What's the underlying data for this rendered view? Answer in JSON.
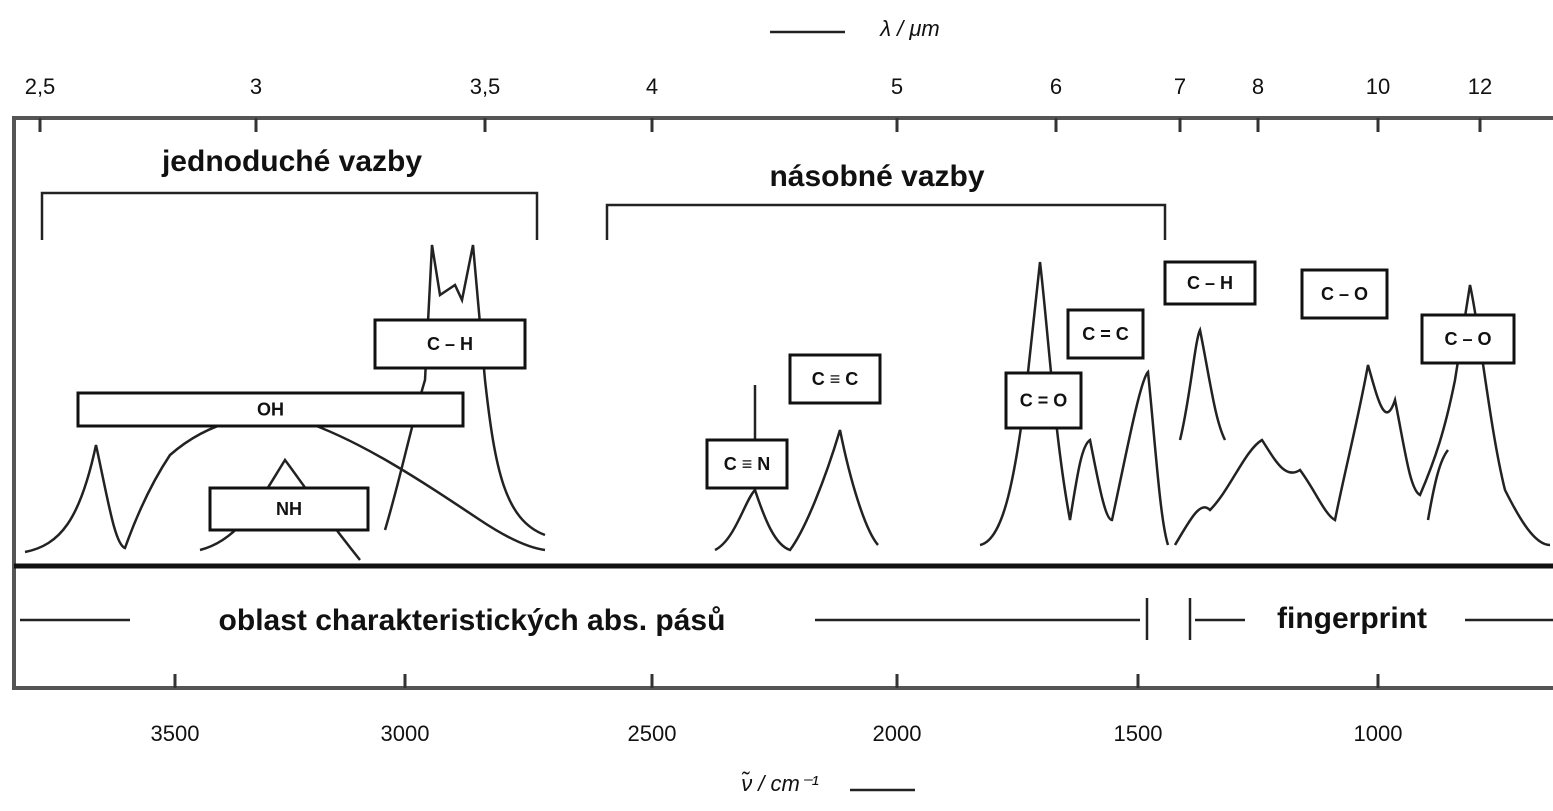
{
  "top_axis": {
    "label": "λ / μm",
    "ticks": [
      "2,5",
      "3",
      "3,5",
      "4",
      "5",
      "6",
      "7",
      "8",
      "10",
      "12"
    ]
  },
  "bottom_axis": {
    "label": "ν̃ / cm⁻¹",
    "ticks": [
      "3500",
      "3000",
      "2500",
      "2000",
      "1500",
      "1000"
    ]
  },
  "regions": {
    "single_bonds": "jednoduché vazby",
    "multiple_bonds": "násobné vazby",
    "characteristic": "oblast charakteristických abs. pásů",
    "fingerprint": "fingerprint"
  },
  "bands": [
    {
      "label": "C – H"
    },
    {
      "label": "OH"
    },
    {
      "label": "NH"
    },
    {
      "label": "C ≡ N"
    },
    {
      "label": "C ≡ C"
    },
    {
      "label": "C = O"
    },
    {
      "label": "C = C"
    },
    {
      "label": "C – H"
    },
    {
      "label": "C – O"
    },
    {
      "label": "C – O"
    }
  ]
}
